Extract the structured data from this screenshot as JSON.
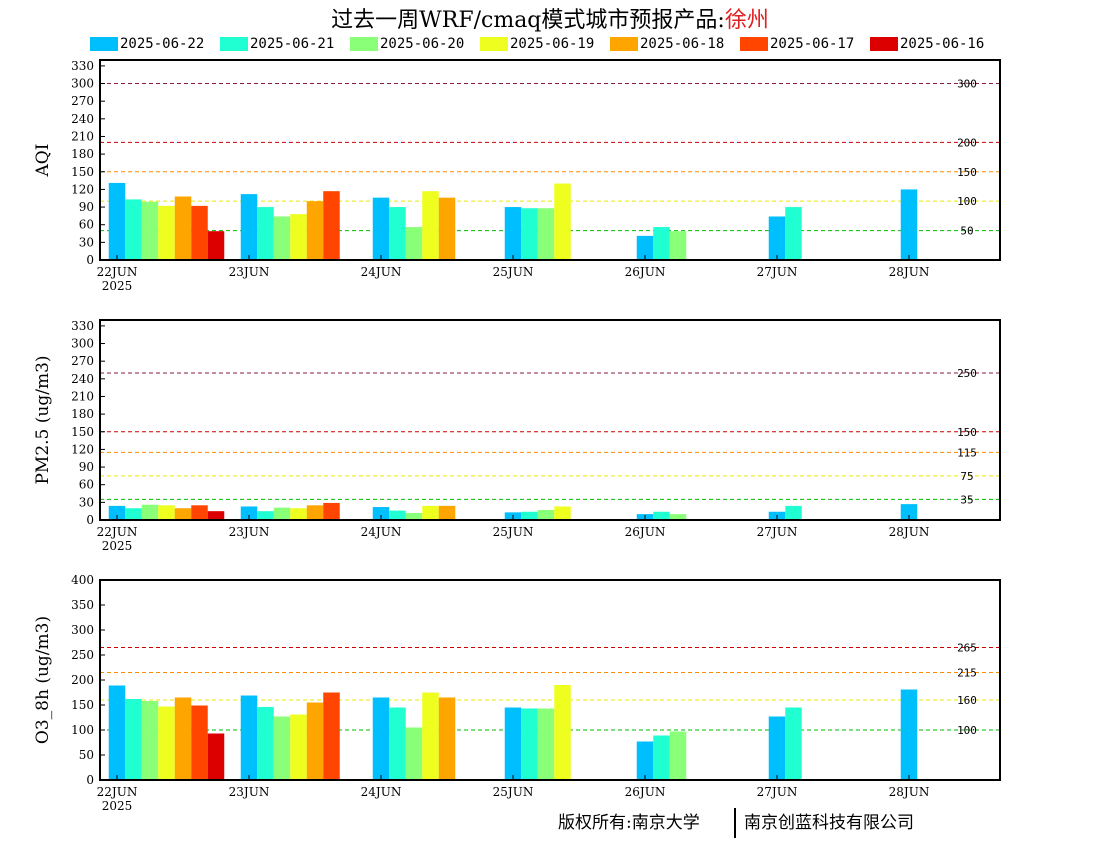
{
  "title": {
    "main": "过去一周WRF/cmaq模式城市预报产品:",
    "city": "徐州"
  },
  "legend": [
    {
      "label": "2025-06-22",
      "color": "#00bfff"
    },
    {
      "label": "2025-06-21",
      "color": "#1fffd2"
    },
    {
      "label": "2025-06-20",
      "color": "#8aff78"
    },
    {
      "label": "2025-06-19",
      "color": "#eeff20"
    },
    {
      "label": "2025-06-18",
      "color": "#ffa500"
    },
    {
      "label": "2025-06-17",
      "color": "#ff4500"
    },
    {
      "label": "2025-06-16",
      "color": "#dd0000"
    }
  ],
  "footer": {
    "left": "版权所有:南京大学",
    "right": "南京创蓝科技有限公司"
  },
  "chart_data": [
    {
      "type": "bar",
      "ylabel": "AQI",
      "ylim": [
        0,
        340
      ],
      "yticks": [
        0,
        30,
        60,
        90,
        120,
        150,
        180,
        210,
        240,
        270,
        300,
        330
      ],
      "categories": [
        "22JUN",
        "23JUN",
        "24JUN",
        "25JUN",
        "26JUN",
        "27JUN",
        "28JUN"
      ],
      "year_label": "2025",
      "thresholds": [
        {
          "value": 300,
          "label": "300",
          "color": "#8b1a4a"
        },
        {
          "value": 200,
          "label": "200",
          "color": "#cc0000"
        },
        {
          "value": 150,
          "label": "150",
          "color": "#ff8c00"
        },
        {
          "value": 100,
          "label": "100",
          "color": "#e8e800"
        },
        {
          "value": 50,
          "label": "50",
          "color": "#00bb00"
        }
      ],
      "series": [
        {
          "name": "2025-06-22",
          "values": [
            131,
            112,
            106,
            90,
            41,
            74,
            120
          ]
        },
        {
          "name": "2025-06-21",
          "values": [
            103,
            90,
            90,
            88,
            56,
            90,
            null
          ]
        },
        {
          "name": "2025-06-20",
          "values": [
            99,
            74,
            56,
            88,
            49,
            null,
            null
          ]
        },
        {
          "name": "2025-06-19",
          "values": [
            92,
            78,
            117,
            130,
            null,
            null,
            null
          ]
        },
        {
          "name": "2025-06-18",
          "values": [
            108,
            100,
            106,
            null,
            null,
            null,
            null
          ]
        },
        {
          "name": "2025-06-17",
          "values": [
            92,
            117,
            null,
            null,
            null,
            null,
            null
          ]
        },
        {
          "name": "2025-06-16",
          "values": [
            49,
            null,
            null,
            null,
            null,
            null,
            null
          ]
        }
      ]
    },
    {
      "type": "bar",
      "ylabel": "PM2.5 (ug/m3)",
      "ylim": [
        0,
        340
      ],
      "yticks": [
        0,
        30,
        60,
        90,
        120,
        150,
        180,
        210,
        240,
        270,
        300,
        330
      ],
      "categories": [
        "22JUN",
        "23JUN",
        "24JUN",
        "25JUN",
        "26JUN",
        "27JUN",
        "28JUN"
      ],
      "year_label": "2025",
      "thresholds": [
        {
          "value": 250,
          "label": "250",
          "color": "#8b1a4a"
        },
        {
          "value": 150,
          "label": "150",
          "color": "#cc0000"
        },
        {
          "value": 115,
          "label": "115",
          "color": "#ff8c00"
        },
        {
          "value": 75,
          "label": "75",
          "color": "#e8e800"
        },
        {
          "value": 35,
          "label": "35",
          "color": "#00bb00"
        }
      ],
      "series": [
        {
          "name": "2025-06-22",
          "values": [
            24,
            23,
            22,
            13,
            10,
            14,
            27
          ]
        },
        {
          "name": "2025-06-21",
          "values": [
            20,
            15,
            16,
            14,
            14,
            24,
            null
          ]
        },
        {
          "name": "2025-06-20",
          "values": [
            26,
            21,
            12,
            17,
            10,
            null,
            null
          ]
        },
        {
          "name": "2025-06-19",
          "values": [
            25,
            20,
            24,
            23,
            null,
            null,
            null
          ]
        },
        {
          "name": "2025-06-18",
          "values": [
            20,
            25,
            24,
            null,
            null,
            null,
            null
          ]
        },
        {
          "name": "2025-06-17",
          "values": [
            25,
            29,
            null,
            null,
            null,
            null,
            null
          ]
        },
        {
          "name": "2025-06-16",
          "values": [
            15,
            null,
            null,
            null,
            null,
            null,
            null
          ]
        }
      ]
    },
    {
      "type": "bar",
      "ylabel": "O3_8h (ug/m3)",
      "ylim": [
        0,
        400
      ],
      "yticks": [
        0,
        50,
        100,
        150,
        200,
        250,
        300,
        350,
        400
      ],
      "categories": [
        "22JUN",
        "23JUN",
        "24JUN",
        "25JUN",
        "26JUN",
        "27JUN",
        "28JUN"
      ],
      "year_label": "2025",
      "thresholds": [
        {
          "value": 265,
          "label": "265",
          "color": "#cc0000"
        },
        {
          "value": 215,
          "label": "215",
          "color": "#ff8c00"
        },
        {
          "value": 160,
          "label": "160",
          "color": "#e8e800"
        },
        {
          "value": 100,
          "label": "100",
          "color": "#00bb00"
        }
      ],
      "series": [
        {
          "name": "2025-06-22",
          "values": [
            189,
            169,
            165,
            145,
            77,
            127,
            181
          ]
        },
        {
          "name": "2025-06-21",
          "values": [
            162,
            146,
            145,
            143,
            89,
            145,
            null
          ]
        },
        {
          "name": "2025-06-20",
          "values": [
            158,
            127,
            105,
            143,
            97,
            null,
            null
          ]
        },
        {
          "name": "2025-06-19",
          "values": [
            147,
            131,
            175,
            190,
            null,
            null,
            null
          ]
        },
        {
          "name": "2025-06-18",
          "values": [
            165,
            155,
            165,
            null,
            null,
            null,
            null
          ]
        },
        {
          "name": "2025-06-17",
          "values": [
            149,
            175,
            null,
            null,
            null,
            null,
            null
          ]
        },
        {
          "name": "2025-06-16",
          "values": [
            93,
            null,
            null,
            null,
            null,
            null,
            null
          ]
        }
      ]
    }
  ]
}
